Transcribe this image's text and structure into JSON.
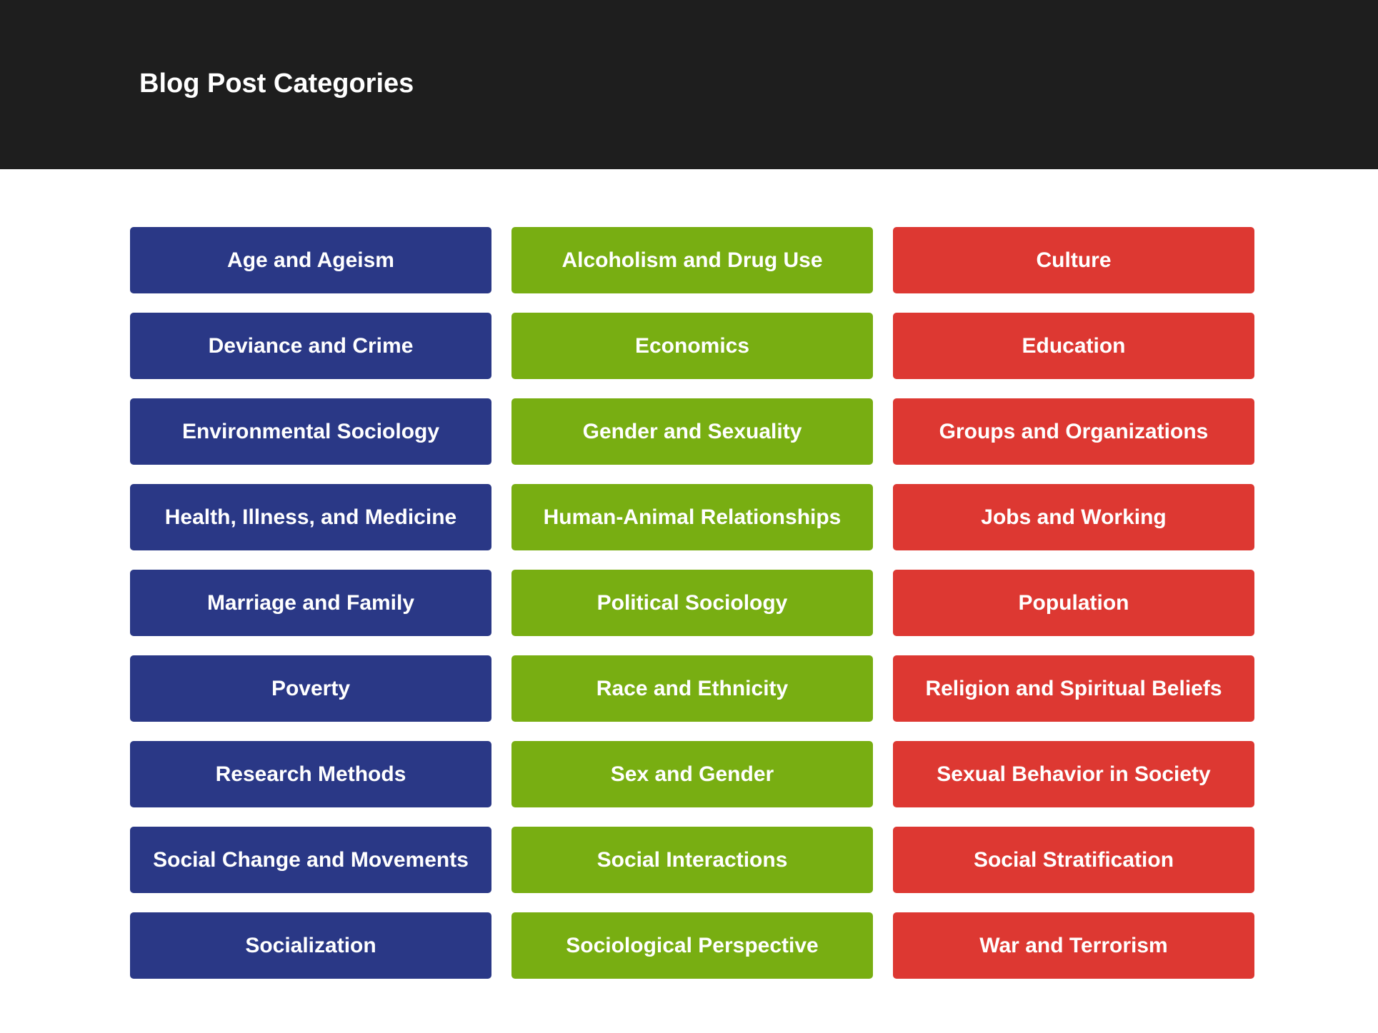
{
  "header": {
    "title": "Blog Post Categories"
  },
  "colors": {
    "header_bg": "#1e1e1e",
    "blue": "#2a3886",
    "green": "#78ae12",
    "red": "#dd3832"
  },
  "categories": {
    "col1": [
      "Age and Ageism",
      "Deviance and Crime",
      "Environmental Sociology",
      "Health, Illness, and Medicine",
      "Marriage and Family",
      "Poverty",
      "Research Methods",
      "Social Change and Movements",
      "Socialization"
    ],
    "col2": [
      "Alcoholism and Drug Use",
      "Economics",
      "Gender and Sexuality",
      "Human-Animal Relationships",
      "Political Sociology",
      "Race and Ethnicity",
      "Sex and Gender",
      "Social Interactions",
      "Sociological Perspective"
    ],
    "col3": [
      "Culture",
      "Education",
      "Groups and Organizations",
      "Jobs and Working",
      "Population",
      "Religion and Spiritual Beliefs",
      "Sexual Behavior in Society",
      "Social Stratification",
      "War and Terrorism"
    ]
  }
}
